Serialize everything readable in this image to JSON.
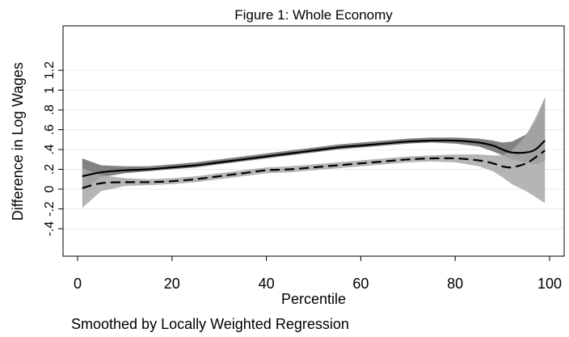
{
  "chart_data": {
    "type": "line",
    "title": "Figure 1: Whole Economy",
    "xlabel": "Percentile",
    "ylabel": "Difference in Log Wages",
    "note": "Smoothed by Locally Weighted Regression",
    "xlim": [
      0,
      100
    ],
    "ylim": [
      -0.6,
      1.4
    ],
    "x_ticks": [
      0,
      20,
      40,
      60,
      80,
      100
    ],
    "x_tick_labels": [
      "0",
      "20",
      "40",
      "60",
      "80",
      "100"
    ],
    "y_ticks": [
      -0.4,
      -0.2,
      0,
      0.2,
      0.4,
      0.6,
      0.8,
      1,
      1.2
    ],
    "y_tick_labels": [
      "-.4",
      "-.2",
      "0",
      ".2",
      ".4",
      ".6",
      ".8",
      "1",
      "1.2"
    ],
    "grid": true,
    "legend": "none",
    "colors": {
      "band_dark": "#7a7a7a",
      "band_light": "#a8a8a8",
      "line": "#000000",
      "grid": "#e8e8e8",
      "frame": "#000000"
    },
    "series": [
      {
        "style": "solid",
        "band": "dark",
        "x": [
          1,
          5,
          10,
          15,
          20,
          25,
          30,
          35,
          40,
          45,
          50,
          55,
          60,
          65,
          70,
          75,
          80,
          85,
          88,
          90,
          92,
          95,
          97,
          99
        ],
        "y": [
          0.13,
          0.17,
          0.19,
          0.2,
          0.22,
          0.24,
          0.27,
          0.3,
          0.33,
          0.36,
          0.39,
          0.42,
          0.44,
          0.46,
          0.48,
          0.49,
          0.49,
          0.47,
          0.44,
          0.4,
          0.37,
          0.37,
          0.4,
          0.49
        ],
        "lower": [
          0.0,
          0.12,
          0.16,
          0.18,
          0.2,
          0.22,
          0.25,
          0.28,
          0.31,
          0.34,
          0.37,
          0.4,
          0.42,
          0.44,
          0.46,
          0.47,
          0.46,
          0.43,
          0.38,
          0.34,
          0.3,
          0.27,
          0.25,
          0.28
        ],
        "upper": [
          0.31,
          0.24,
          0.23,
          0.23,
          0.25,
          0.27,
          0.3,
          0.33,
          0.36,
          0.39,
          0.42,
          0.45,
          0.47,
          0.49,
          0.51,
          0.52,
          0.52,
          0.51,
          0.49,
          0.47,
          0.48,
          0.55,
          0.68,
          0.93
        ]
      },
      {
        "style": "dashed",
        "band": "light",
        "x": [
          1,
          5,
          10,
          15,
          20,
          25,
          30,
          35,
          40,
          45,
          50,
          55,
          60,
          65,
          70,
          75,
          80,
          85,
          88,
          90,
          92,
          95,
          97,
          99
        ],
        "y": [
          0.01,
          0.06,
          0.07,
          0.07,
          0.08,
          0.1,
          0.13,
          0.16,
          0.19,
          0.2,
          0.22,
          0.24,
          0.26,
          0.28,
          0.3,
          0.31,
          0.31,
          0.29,
          0.26,
          0.23,
          0.22,
          0.26,
          0.32,
          0.39
        ],
        "lower": [
          -0.19,
          -0.02,
          0.03,
          0.04,
          0.05,
          0.07,
          0.1,
          0.13,
          0.16,
          0.17,
          0.19,
          0.21,
          0.23,
          0.25,
          0.27,
          0.28,
          0.27,
          0.23,
          0.18,
          0.12,
          0.05,
          -0.02,
          -0.08,
          -0.14
        ],
        "upper": [
          0.21,
          0.14,
          0.11,
          0.1,
          0.11,
          0.13,
          0.16,
          0.19,
          0.22,
          0.23,
          0.25,
          0.27,
          0.29,
          0.31,
          0.33,
          0.34,
          0.35,
          0.35,
          0.34,
          0.34,
          0.39,
          0.54,
          0.72,
          0.92
        ]
      }
    ]
  }
}
